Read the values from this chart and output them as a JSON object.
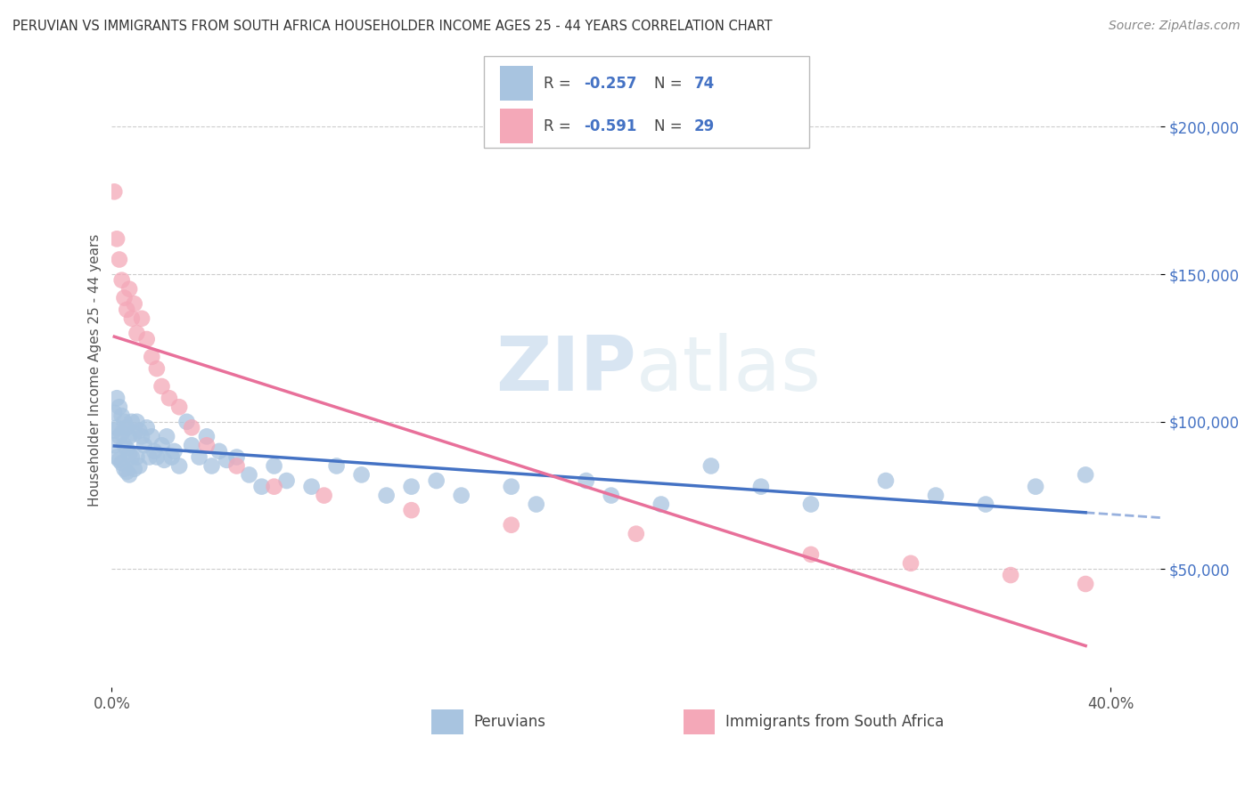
{
  "title": "PERUVIAN VS IMMIGRANTS FROM SOUTH AFRICA HOUSEHOLDER INCOME AGES 25 - 44 YEARS CORRELATION CHART",
  "source": "Source: ZipAtlas.com",
  "ylabel": "Householder Income Ages 25 - 44 years",
  "yticks": [
    50000,
    100000,
    150000,
    200000
  ],
  "ytick_labels": [
    "$50,000",
    "$100,000",
    "$150,000",
    "$200,000"
  ],
  "xlim": [
    0.0,
    0.42
  ],
  "ylim": [
    10000,
    225000
  ],
  "legend_label_blue": "Peruvians",
  "legend_label_pink": "Immigrants from South Africa",
  "blue_color": "#a8c4e0",
  "pink_color": "#f4a8b8",
  "blue_line_color": "#4472c4",
  "pink_line_color": "#e8709a",
  "blue_r": "-0.257",
  "blue_n": "74",
  "pink_r": "-0.591",
  "pink_n": "29",
  "blue_scatter_x": [
    0.001,
    0.001,
    0.001,
    0.002,
    0.002,
    0.002,
    0.003,
    0.003,
    0.003,
    0.004,
    0.004,
    0.004,
    0.005,
    0.005,
    0.005,
    0.006,
    0.006,
    0.006,
    0.007,
    0.007,
    0.007,
    0.008,
    0.008,
    0.009,
    0.009,
    0.01,
    0.01,
    0.011,
    0.011,
    0.012,
    0.013,
    0.014,
    0.015,
    0.016,
    0.017,
    0.018,
    0.02,
    0.021,
    0.022,
    0.024,
    0.025,
    0.027,
    0.03,
    0.032,
    0.035,
    0.038,
    0.04,
    0.043,
    0.046,
    0.05,
    0.055,
    0.06,
    0.065,
    0.07,
    0.08,
    0.09,
    0.1,
    0.11,
    0.12,
    0.13,
    0.14,
    0.16,
    0.17,
    0.19,
    0.2,
    0.22,
    0.24,
    0.26,
    0.28,
    0.31,
    0.33,
    0.35,
    0.37,
    0.39
  ],
  "blue_scatter_y": [
    103000,
    97000,
    92000,
    108000,
    98000,
    88000,
    105000,
    95000,
    87000,
    102000,
    96000,
    86000,
    100000,
    92000,
    84000,
    98000,
    91000,
    83000,
    95000,
    89000,
    82000,
    100000,
    88000,
    96000,
    84000,
    100000,
    88000,
    97000,
    85000,
    95000,
    92000,
    98000,
    88000,
    95000,
    90000,
    88000,
    92000,
    87000,
    95000,
    88000,
    90000,
    85000,
    100000,
    92000,
    88000,
    95000,
    85000,
    90000,
    87000,
    88000,
    82000,
    78000,
    85000,
    80000,
    78000,
    85000,
    82000,
    75000,
    78000,
    80000,
    75000,
    78000,
    72000,
    80000,
    75000,
    72000,
    85000,
    78000,
    72000,
    80000,
    75000,
    72000,
    78000,
    82000
  ],
  "pink_scatter_x": [
    0.001,
    0.002,
    0.003,
    0.004,
    0.005,
    0.006,
    0.007,
    0.008,
    0.009,
    0.01,
    0.012,
    0.014,
    0.016,
    0.018,
    0.02,
    0.023,
    0.027,
    0.032,
    0.038,
    0.05,
    0.065,
    0.085,
    0.12,
    0.16,
    0.21,
    0.28,
    0.32,
    0.36,
    0.39
  ],
  "pink_scatter_y": [
    178000,
    162000,
    155000,
    148000,
    142000,
    138000,
    145000,
    135000,
    140000,
    130000,
    135000,
    128000,
    122000,
    118000,
    112000,
    108000,
    105000,
    98000,
    92000,
    85000,
    78000,
    75000,
    70000,
    65000,
    62000,
    55000,
    52000,
    48000,
    45000
  ]
}
